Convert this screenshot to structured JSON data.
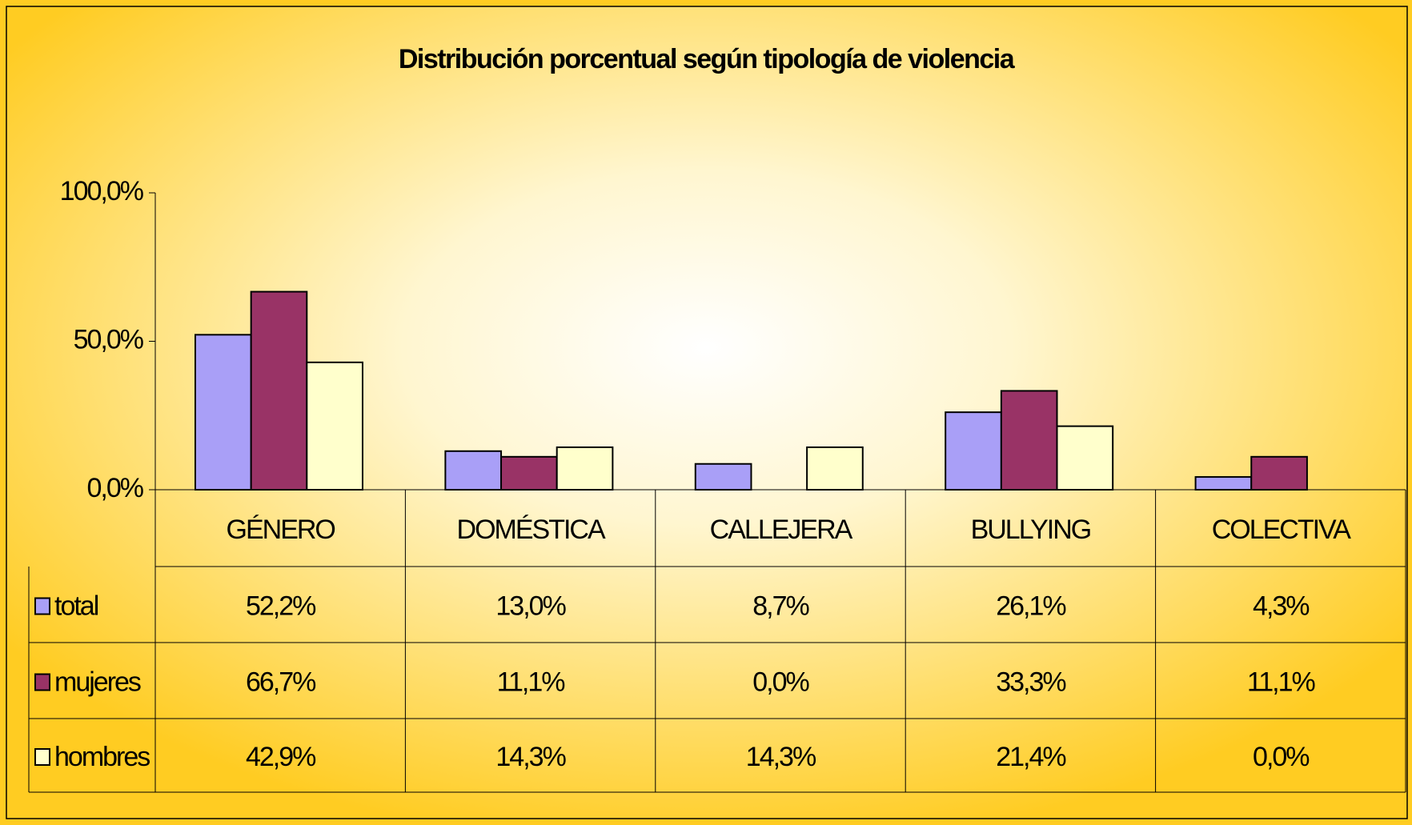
{
  "chart_data": {
    "type": "bar",
    "title": "Distribución porcentual según tipología de violencia",
    "categories": [
      "GÉNERO",
      "DOMÉSTICA",
      "CALLEJERA",
      "BULLYING",
      "COLECTIVA"
    ],
    "series": [
      {
        "name": "total",
        "color": "#a99ff7",
        "values": [
          52.2,
          13.0,
          8.7,
          26.1,
          4.3
        ],
        "value_labels": [
          "52,2%",
          "13,0%",
          "8,7%",
          "26,1%",
          "4,3%"
        ]
      },
      {
        "name": "mujeres",
        "color": "#993366",
        "values": [
          66.7,
          11.1,
          0.0,
          33.3,
          11.1
        ],
        "value_labels": [
          "66,7%",
          "11,1%",
          "0,0%",
          "33,3%",
          "11,1%"
        ]
      },
      {
        "name": "hombres",
        "color": "#ffffcc",
        "values": [
          42.9,
          14.3,
          14.3,
          21.4,
          0.0
        ],
        "value_labels": [
          "42,9%",
          "14,3%",
          "14,3%",
          "21,4%",
          "0,0%"
        ]
      }
    ],
    "ylim": [
      0,
      100
    ],
    "yticks": [
      {
        "value": 0,
        "label": "0,0%"
      },
      {
        "value": 50,
        "label": "50,0%"
      },
      {
        "value": 100,
        "label": "100,0%"
      }
    ],
    "data_table": true
  }
}
